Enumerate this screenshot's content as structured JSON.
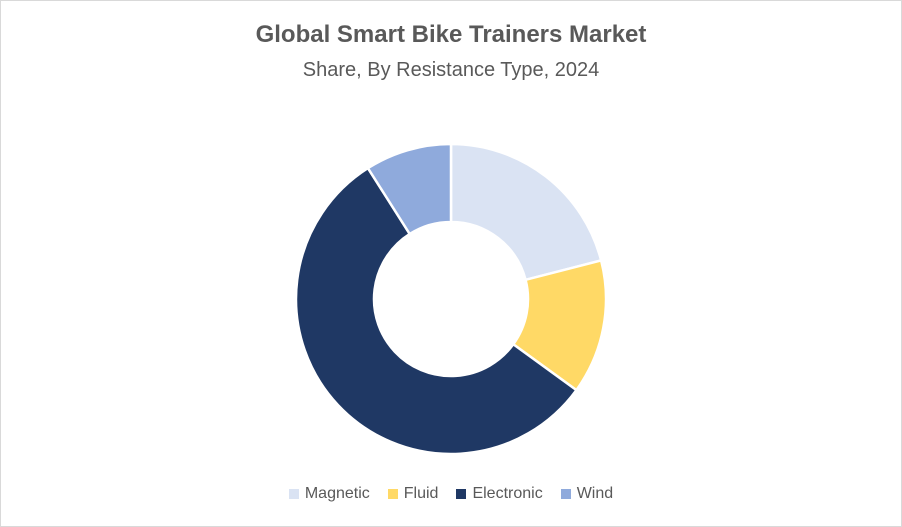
{
  "chart_data": {
    "type": "pie",
    "title": "Global Smart Bike Trainers Market",
    "subtitle": "Share, By Resistance Type, 2024",
    "donut": true,
    "legend_position": "bottom",
    "categories": [
      "Magnetic",
      "Fluid",
      "Electronic",
      "Wind"
    ],
    "values": [
      21,
      14,
      56,
      9
    ],
    "colors": [
      "#dae3f3",
      "#ffd966",
      "#1f3864",
      "#8faadc"
    ]
  }
}
